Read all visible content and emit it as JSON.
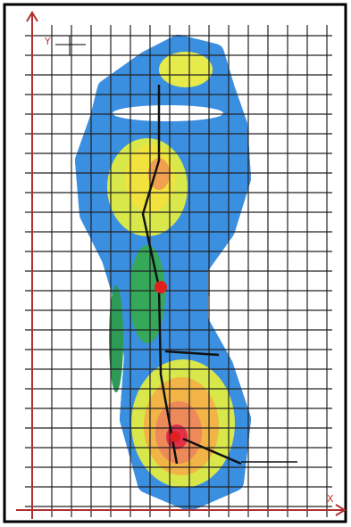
{
  "axes": {
    "y_label": "Y",
    "x_label": "X"
  }
}
